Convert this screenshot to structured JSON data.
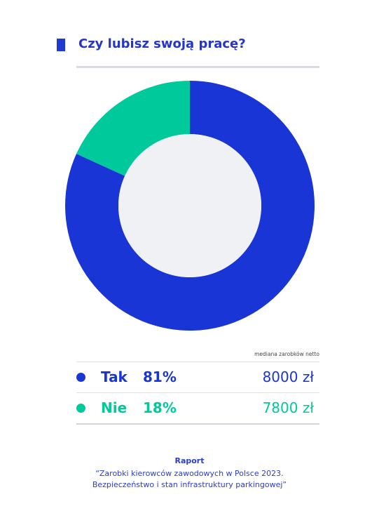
{
  "title": "Czy lubisz swoją pracę?",
  "colors": {
    "accent": "#1f3bd1",
    "tak": "#1a35d6",
    "nie": "#00c99b",
    "center": "#f0f1f4"
  },
  "median_label": "mediana zarobków netto",
  "chart_data": {
    "type": "pie",
    "title": "Czy lubisz swoją pracę?",
    "categories": [
      "Tak",
      "Nie"
    ],
    "values": [
      81,
      18
    ],
    "unit": "%",
    "salaries": [
      "8000 zł",
      "7800 zł"
    ]
  },
  "legend": [
    {
      "label": "Tak",
      "percent": "81%",
      "salary": "8000 zł",
      "color": "#1a35d6"
    },
    {
      "label": "Nie",
      "percent": "18%",
      "salary": "7800 zł",
      "color": "#00c99b"
    }
  ],
  "footer": {
    "title": "Raport",
    "line1": "“Zarobki kierowców zawodowych w Polsce 2023.",
    "line2": "Bezpieczeństwo i stan infrastruktury parkingowej”"
  }
}
